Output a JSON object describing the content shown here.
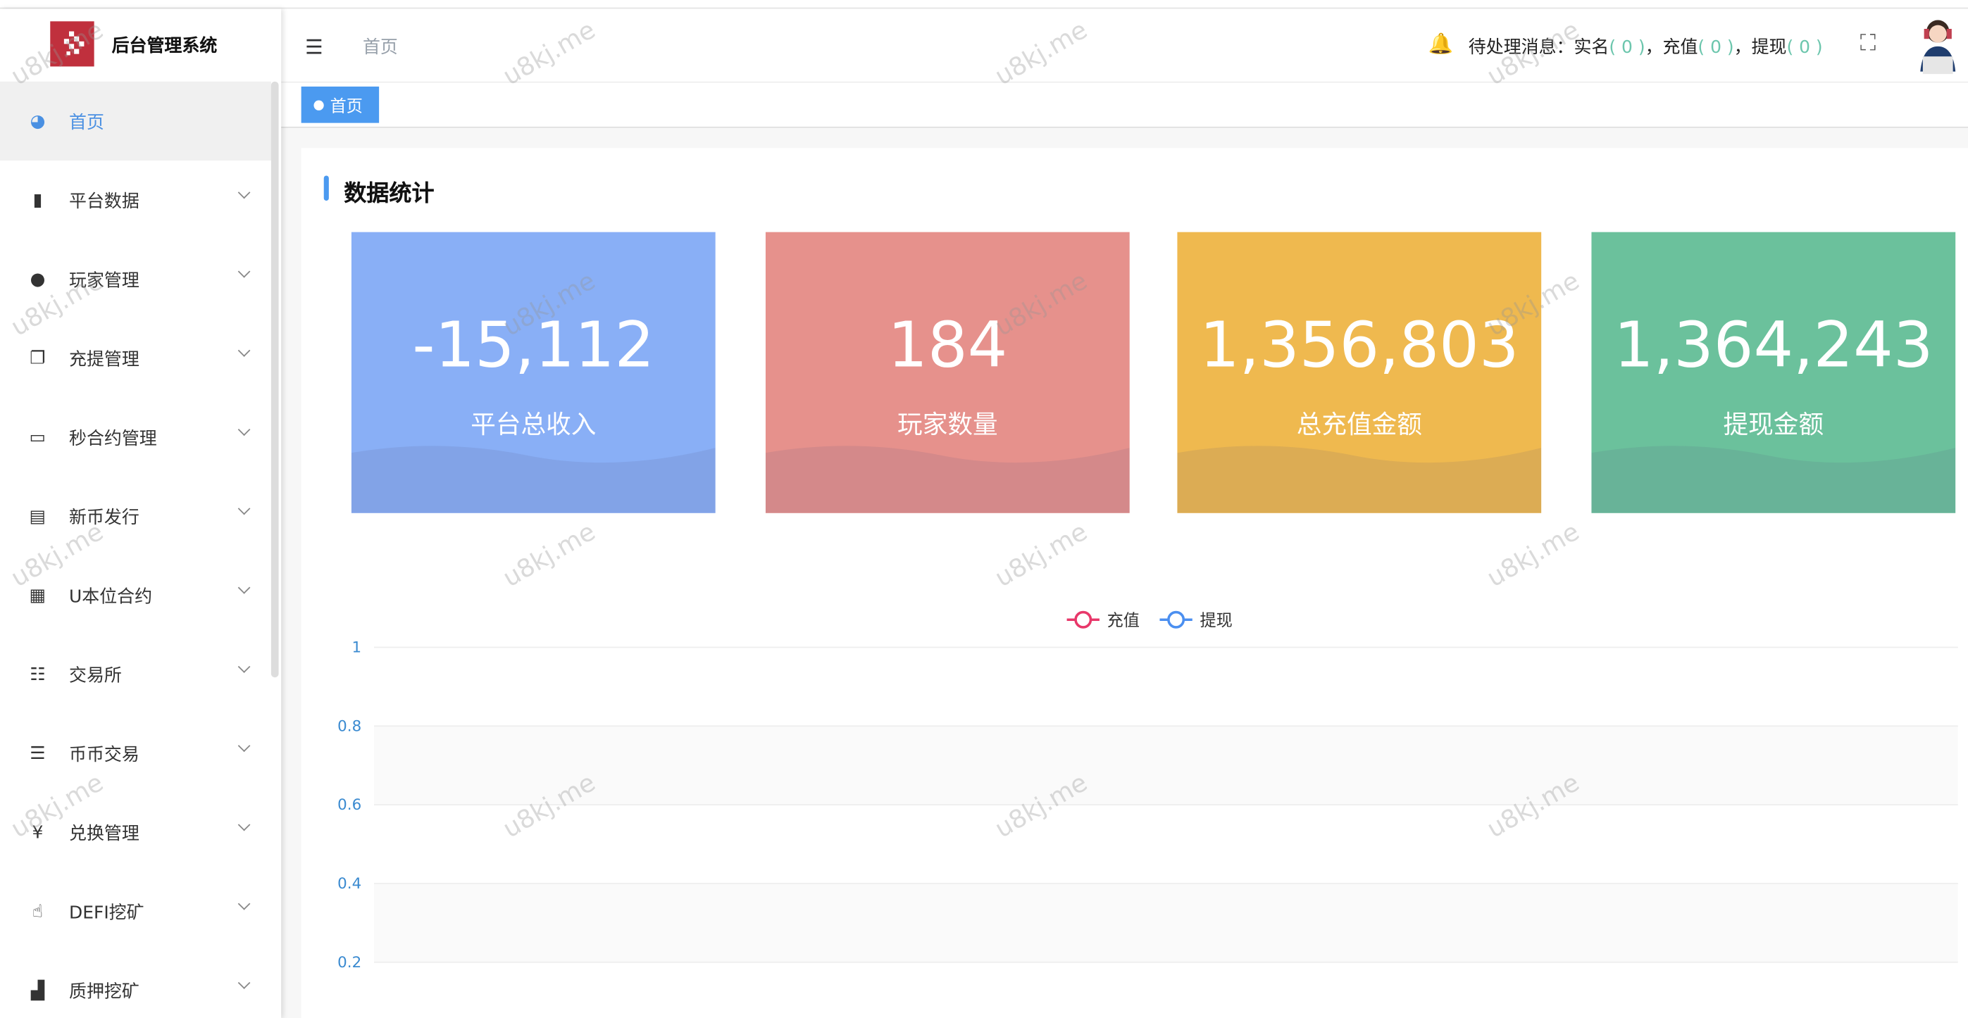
{
  "app": {
    "title": "后台管理系统",
    "watermark": "u8kj.me"
  },
  "sidebar": {
    "items": [
      {
        "label": "首页",
        "icon": "dashboard-icon",
        "active": true
      },
      {
        "label": "平台数据",
        "icon": "book-icon"
      },
      {
        "label": "玩家管理",
        "icon": "user-icon"
      },
      {
        "label": "充提管理",
        "icon": "copy-icon"
      },
      {
        "label": "秒合约管理",
        "icon": "monitor-icon"
      },
      {
        "label": "新币发行",
        "icon": "card-icon"
      },
      {
        "label": "U本位合约",
        "icon": "table-icon"
      },
      {
        "label": "交易所",
        "icon": "list-indent-icon"
      },
      {
        "label": "币币交易",
        "icon": "list-icon"
      },
      {
        "label": "兑换管理",
        "icon": "yen-icon"
      },
      {
        "label": "DEFI挖矿",
        "icon": "hand-icon"
      },
      {
        "label": "质押挖矿",
        "icon": "bar-chart-icon"
      }
    ]
  },
  "header": {
    "breadcrumb": "首页",
    "notice_label": "待处理消息：",
    "items": [
      {
        "label": "实名",
        "count": "( 0 )"
      },
      {
        "label": "，充值",
        "count": "( 0 )"
      },
      {
        "label": "，提现",
        "count": "( 0 )"
      }
    ]
  },
  "tags": [
    {
      "label": "首页"
    }
  ],
  "main": {
    "title": "数据统计",
    "stats": [
      {
        "value": "-15,112",
        "label": "平台总收入",
        "color": "#89aff6"
      },
      {
        "value": "184",
        "label": "玩家数量",
        "color": "#e6918c"
      },
      {
        "value": "1,356,803",
        "label": "总充值金额",
        "color": "#efb94f"
      },
      {
        "value": "1,364,243",
        "label": "提现金额",
        "color": "#6bc19c"
      }
    ]
  },
  "chart_data": {
    "type": "line",
    "series": [
      {
        "name": "充值",
        "color": "#e8386a",
        "values": []
      },
      {
        "name": "提现",
        "color": "#4b8ff0",
        "values": []
      }
    ],
    "ylim": [
      0,
      1
    ],
    "yticks": [
      "1",
      "0.8",
      "0.6",
      "0.4",
      "0.2"
    ],
    "legend": "top-center",
    "grid": true
  }
}
